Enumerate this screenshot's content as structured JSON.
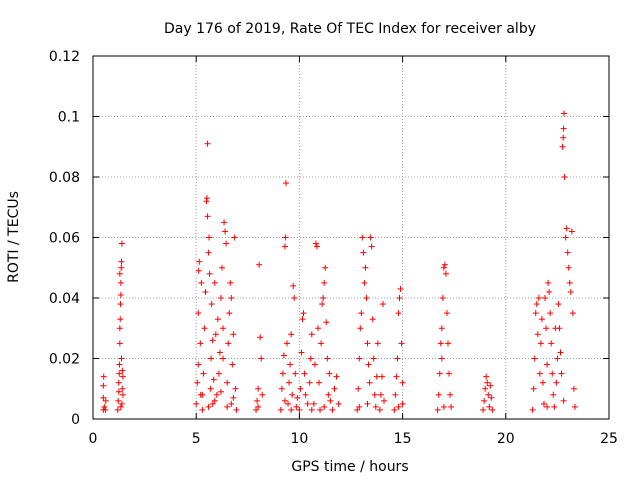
{
  "chart_data": {
    "type": "scatter",
    "title": "Day 176 of 2019, Rate Of TEC Index for receiver alby",
    "xlabel": "GPS time / hours",
    "ylabel": "ROTI / TECUs",
    "xlim": [
      0,
      25
    ],
    "ylim": [
      0,
      0.12
    ],
    "xticks": [
      0,
      5,
      10,
      15,
      20,
      25
    ],
    "xtick_labels": [
      "0",
      "5",
      "10",
      "15",
      "20",
      "25"
    ],
    "yticks": [
      0,
      0.02,
      0.04,
      0.06,
      0.08,
      0.1,
      0.12
    ],
    "ytick_labels": [
      "0",
      "0.02",
      "0.04",
      "0.06",
      "0.08",
      "0.1",
      "0.12"
    ],
    "grid": true,
    "marker": "+",
    "color": "#ff0000",
    "series": [
      {
        "name": "ROTI",
        "points": [
          [
            0.5,
            0.003
          ],
          [
            0.5,
            0.007
          ],
          [
            0.5,
            0.011
          ],
          [
            0.52,
            0.014
          ],
          [
            0.55,
            0.004
          ],
          [
            0.6,
            0.003
          ],
          [
            0.62,
            0.006
          ],
          [
            1.2,
            0.003
          ],
          [
            1.22,
            0.006
          ],
          [
            1.25,
            0.009
          ],
          [
            1.25,
            0.012
          ],
          [
            1.27,
            0.015
          ],
          [
            1.28,
            0.018
          ],
          [
            1.3,
            0.025
          ],
          [
            1.3,
            0.03
          ],
          [
            1.32,
            0.033
          ],
          [
            1.33,
            0.038
          ],
          [
            1.35,
            0.041
          ],
          [
            1.35,
            0.045
          ],
          [
            1.37,
            0.05
          ],
          [
            1.38,
            0.052
          ],
          [
            1.4,
            0.058
          ],
          [
            1.4,
            0.005
          ],
          [
            1.42,
            0.01
          ],
          [
            1.45,
            0.014
          ],
          [
            1.45,
            0.008
          ],
          [
            1.35,
            0.004
          ],
          [
            1.3,
            0.048
          ],
          [
            1.38,
            0.02
          ],
          [
            1.42,
            0.016
          ],
          [
            5.0,
            0.005
          ],
          [
            5.05,
            0.012
          ],
          [
            5.1,
            0.018
          ],
          [
            5.1,
            0.035
          ],
          [
            5.12,
            0.049
          ],
          [
            5.15,
            0.052
          ],
          [
            5.2,
            0.025
          ],
          [
            5.22,
            0.008
          ],
          [
            5.25,
            0.045
          ],
          [
            5.3,
            0.003
          ],
          [
            5.35,
            0.015
          ],
          [
            5.4,
            0.03
          ],
          [
            5.45,
            0.042
          ],
          [
            5.5,
            0.072
          ],
          [
            5.52,
            0.073
          ],
          [
            5.55,
            0.067
          ],
          [
            5.55,
            0.091
          ],
          [
            5.6,
            0.055
          ],
          [
            5.62,
            0.06
          ],
          [
            5.65,
            0.048
          ],
          [
            5.7,
            0.01
          ],
          [
            5.72,
            0.02
          ],
          [
            5.75,
            0.038
          ],
          [
            5.8,
            0.005
          ],
          [
            5.85,
            0.013
          ],
          [
            5.9,
            0.045
          ],
          [
            5.95,
            0.028
          ],
          [
            6.0,
            0.008
          ],
          [
            6.05,
            0.033
          ],
          [
            6.1,
            0.015
          ],
          [
            6.15,
            0.022
          ],
          [
            6.2,
            0.04
          ],
          [
            6.25,
            0.05
          ],
          [
            6.3,
            0.03
          ],
          [
            6.35,
            0.065
          ],
          [
            6.4,
            0.062
          ],
          [
            6.45,
            0.058
          ],
          [
            6.5,
            0.012
          ],
          [
            6.55,
            0.025
          ],
          [
            6.6,
            0.035
          ],
          [
            6.65,
            0.045
          ],
          [
            6.7,
            0.005
          ],
          [
            6.75,
            0.018
          ],
          [
            6.8,
            0.028
          ],
          [
            6.85,
            0.06
          ],
          [
            6.9,
            0.01
          ],
          [
            6.95,
            0.003
          ],
          [
            5.3,
            0.008
          ],
          [
            5.6,
            0.004
          ],
          [
            5.9,
            0.006
          ],
          [
            6.2,
            0.009
          ],
          [
            6.5,
            0.004
          ],
          [
            6.8,
            0.007
          ],
          [
            5.8,
            0.026
          ],
          [
            6.3,
            0.02
          ],
          [
            6.7,
            0.04
          ],
          [
            7.9,
            0.003
          ],
          [
            7.95,
            0.006
          ],
          [
            8.0,
            0.01
          ],
          [
            8.05,
            0.051
          ],
          [
            8.1,
            0.027
          ],
          [
            8.15,
            0.02
          ],
          [
            8.2,
            0.008
          ],
          [
            8.0,
            0.004
          ],
          [
            9.1,
            0.003
          ],
          [
            9.15,
            0.01
          ],
          [
            9.2,
            0.015
          ],
          [
            9.25,
            0.021
          ],
          [
            9.3,
            0.057
          ],
          [
            9.32,
            0.06
          ],
          [
            9.35,
            0.078
          ],
          [
            9.4,
            0.025
          ],
          [
            9.45,
            0.005
          ],
          [
            9.5,
            0.012
          ],
          [
            9.55,
            0.018
          ],
          [
            9.6,
            0.028
          ],
          [
            9.65,
            0.008
          ],
          [
            9.7,
            0.044
          ],
          [
            9.75,
            0.04
          ],
          [
            9.8,
            0.015
          ],
          [
            9.85,
            0.004
          ],
          [
            9.9,
            0.007
          ],
          [
            9.3,
            0.006
          ],
          [
            9.6,
            0.003
          ],
          [
            10.0,
            0.003
          ],
          [
            10.05,
            0.01
          ],
          [
            10.1,
            0.022
          ],
          [
            10.15,
            0.033
          ],
          [
            10.2,
            0.035
          ],
          [
            10.25,
            0.015
          ],
          [
            10.3,
            0.008
          ],
          [
            10.4,
            0.005
          ],
          [
            10.5,
            0.012
          ],
          [
            10.55,
            0.02
          ],
          [
            10.6,
            0.028
          ],
          [
            10.7,
            0.005
          ],
          [
            10.75,
            0.018
          ],
          [
            10.8,
            0.058
          ],
          [
            10.85,
            0.057
          ],
          [
            10.9,
            0.03
          ],
          [
            10.95,
            0.012
          ],
          [
            11.0,
            0.003
          ],
          [
            11.05,
            0.025
          ],
          [
            11.1,
            0.038
          ],
          [
            11.15,
            0.04
          ],
          [
            11.2,
            0.045
          ],
          [
            11.25,
            0.05
          ],
          [
            11.3,
            0.032
          ],
          [
            11.35,
            0.02
          ],
          [
            11.4,
            0.008
          ],
          [
            11.45,
            0.015
          ],
          [
            11.5,
            0.006
          ],
          [
            11.6,
            0.003
          ],
          [
            11.7,
            0.01
          ],
          [
            11.8,
            0.014
          ],
          [
            11.9,
            0.005
          ],
          [
            11.2,
            0.004
          ],
          [
            10.6,
            0.003
          ],
          [
            12.8,
            0.003
          ],
          [
            12.85,
            0.01
          ],
          [
            12.9,
            0.02
          ],
          [
            12.95,
            0.03
          ],
          [
            13.0,
            0.035
          ],
          [
            13.05,
            0.06
          ],
          [
            13.1,
            0.055
          ],
          [
            13.15,
            0.045
          ],
          [
            13.2,
            0.05
          ],
          [
            13.25,
            0.04
          ],
          [
            13.3,
            0.025
          ],
          [
            13.35,
            0.018
          ],
          [
            13.4,
            0.012
          ],
          [
            13.45,
            0.06
          ],
          [
            13.5,
            0.057
          ],
          [
            13.55,
            0.033
          ],
          [
            13.6,
            0.02
          ],
          [
            13.65,
            0.008
          ],
          [
            13.7,
            0.004
          ],
          [
            13.75,
            0.014
          ],
          [
            13.8,
            0.025
          ],
          [
            13.9,
            0.003
          ],
          [
            13.95,
            0.008
          ],
          [
            14.0,
            0.014
          ],
          [
            14.05,
            0.038
          ],
          [
            14.1,
            0.006
          ],
          [
            13.3,
            0.005
          ],
          [
            12.9,
            0.004
          ],
          [
            14.6,
            0.003
          ],
          [
            14.65,
            0.008
          ],
          [
            14.7,
            0.014
          ],
          [
            14.75,
            0.02
          ],
          [
            14.8,
            0.035
          ],
          [
            14.85,
            0.04
          ],
          [
            14.9,
            0.043
          ],
          [
            14.95,
            0.025
          ],
          [
            15.0,
            0.012
          ],
          [
            15.0,
            0.005
          ],
          [
            14.8,
            0.004
          ],
          [
            16.7,
            0.003
          ],
          [
            16.75,
            0.008
          ],
          [
            16.8,
            0.015
          ],
          [
            16.85,
            0.025
          ],
          [
            16.9,
            0.03
          ],
          [
            16.95,
            0.04
          ],
          [
            17.0,
            0.05
          ],
          [
            17.05,
            0.051
          ],
          [
            17.1,
            0.048
          ],
          [
            17.15,
            0.035
          ],
          [
            17.2,
            0.025
          ],
          [
            17.25,
            0.015
          ],
          [
            17.3,
            0.008
          ],
          [
            17.35,
            0.004
          ],
          [
            17.0,
            0.004
          ],
          [
            16.9,
            0.02
          ],
          [
            18.9,
            0.003
          ],
          [
            18.95,
            0.006
          ],
          [
            19.0,
            0.01
          ],
          [
            19.05,
            0.014
          ],
          [
            19.1,
            0.012
          ],
          [
            19.15,
            0.008
          ],
          [
            19.2,
            0.004
          ],
          [
            19.25,
            0.011
          ],
          [
            19.3,
            0.007
          ],
          [
            19.35,
            0.003
          ],
          [
            21.3,
            0.003
          ],
          [
            21.35,
            0.01
          ],
          [
            21.4,
            0.02
          ],
          [
            21.45,
            0.035
          ],
          [
            21.5,
            0.038
          ],
          [
            21.55,
            0.028
          ],
          [
            21.6,
            0.04
          ],
          [
            21.65,
            0.015
          ],
          [
            21.7,
            0.025
          ],
          [
            21.75,
            0.033
          ],
          [
            21.8,
            0.012
          ],
          [
            21.85,
            0.005
          ],
          [
            21.9,
            0.04
          ],
          [
            21.95,
            0.03
          ],
          [
            22.0,
            0.018
          ],
          [
            22.05,
            0.045
          ],
          [
            22.1,
            0.042
          ],
          [
            22.15,
            0.035
          ],
          [
            22.2,
            0.025
          ],
          [
            22.25,
            0.015
          ],
          [
            22.3,
            0.008
          ],
          [
            22.35,
            0.004
          ],
          [
            22.4,
            0.03
          ],
          [
            22.45,
            0.012
          ],
          [
            22.5,
            0.02
          ],
          [
            22.55,
            0.038
          ],
          [
            22.6,
            0.03
          ],
          [
            22.65,
            0.022
          ],
          [
            22.7,
            0.015
          ],
          [
            22.75,
            0.09
          ],
          [
            22.78,
            0.093
          ],
          [
            22.8,
            0.096
          ],
          [
            22.82,
            0.101
          ],
          [
            22.85,
            0.08
          ],
          [
            22.9,
            0.06
          ],
          [
            22.95,
            0.063
          ],
          [
            23.0,
            0.055
          ],
          [
            23.05,
            0.05
          ],
          [
            23.1,
            0.045
          ],
          [
            23.15,
            0.042
          ],
          [
            23.2,
            0.062
          ],
          [
            23.25,
            0.035
          ],
          [
            23.3,
            0.01
          ],
          [
            23.35,
            0.004
          ],
          [
            22.0,
            0.004
          ],
          [
            22.8,
            0.006
          ]
        ]
      }
    ]
  }
}
